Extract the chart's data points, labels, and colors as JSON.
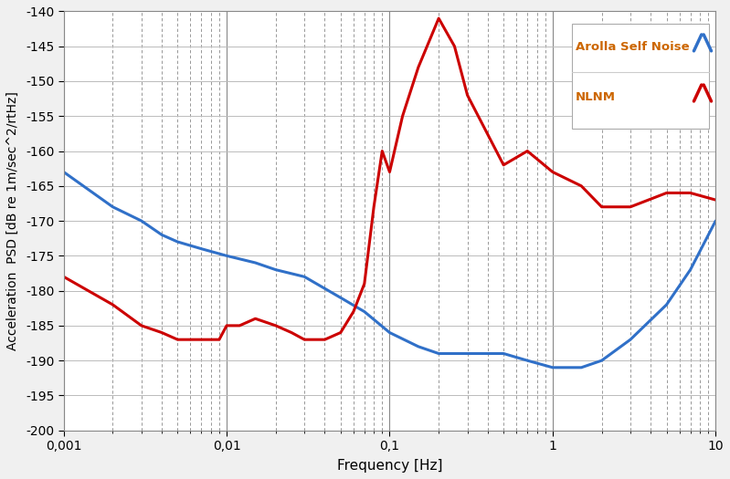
{
  "title": "",
  "xlabel": "Frequency [Hz]",
  "ylabel": "Acceleration  PSD [dB re 1m/sec^2/rtHz]",
  "xlim_log": [
    -3,
    1
  ],
  "ylim": [
    -200,
    -140
  ],
  "yticks": [
    -200,
    -195,
    -190,
    -185,
    -180,
    -175,
    -170,
    -165,
    -160,
    -155,
    -150,
    -145,
    -140
  ],
  "blue_color": "#3070C8",
  "red_color": "#CC0000",
  "legend_text_color": "#CC6600",
  "bg_color": "#F0F0F0",
  "plot_bg_color": "#FFFFFF",
  "grid_color": "#C0C0C0",
  "arolla_x": [
    0.001,
    0.002,
    0.003,
    0.004,
    0.005,
    0.007,
    0.01,
    0.015,
    0.02,
    0.03,
    0.05,
    0.07,
    0.1,
    0.15,
    0.2,
    0.3,
    0.5,
    0.7,
    1.0,
    1.5,
    2.0,
    3.0,
    5.0,
    7.0,
    10.0
  ],
  "arolla_y": [
    -163,
    -168,
    -170,
    -172,
    -173,
    -174,
    -175,
    -176,
    -177,
    -178,
    -181,
    -183,
    -186,
    -188,
    -189,
    -189,
    -189,
    -190,
    -191,
    -191,
    -190,
    -187,
    -182,
    -177,
    -170
  ],
  "nlnm_x": [
    0.001,
    0.002,
    0.003,
    0.004,
    0.005,
    0.006,
    0.007,
    0.008,
    0.009,
    0.01,
    0.012,
    0.015,
    0.02,
    0.025,
    0.03,
    0.04,
    0.05,
    0.06,
    0.07,
    0.08,
    0.09,
    0.1,
    0.12,
    0.15,
    0.2,
    0.25,
    0.3,
    0.5,
    0.7,
    1.0,
    1.5,
    2.0,
    3.0,
    5.0,
    7.0,
    10.0
  ],
  "nlnm_y": [
    -178,
    -182,
    -185,
    -186,
    -187,
    -187,
    -187,
    -187,
    -187,
    -185,
    -185,
    -184,
    -185,
    -186,
    -187,
    -187,
    -186,
    -183,
    -179,
    -168,
    -160,
    -163,
    -155,
    -148,
    -141,
    -145,
    -152,
    -162,
    -160,
    -163,
    -165,
    -168,
    -168,
    -166,
    -166,
    -167
  ]
}
